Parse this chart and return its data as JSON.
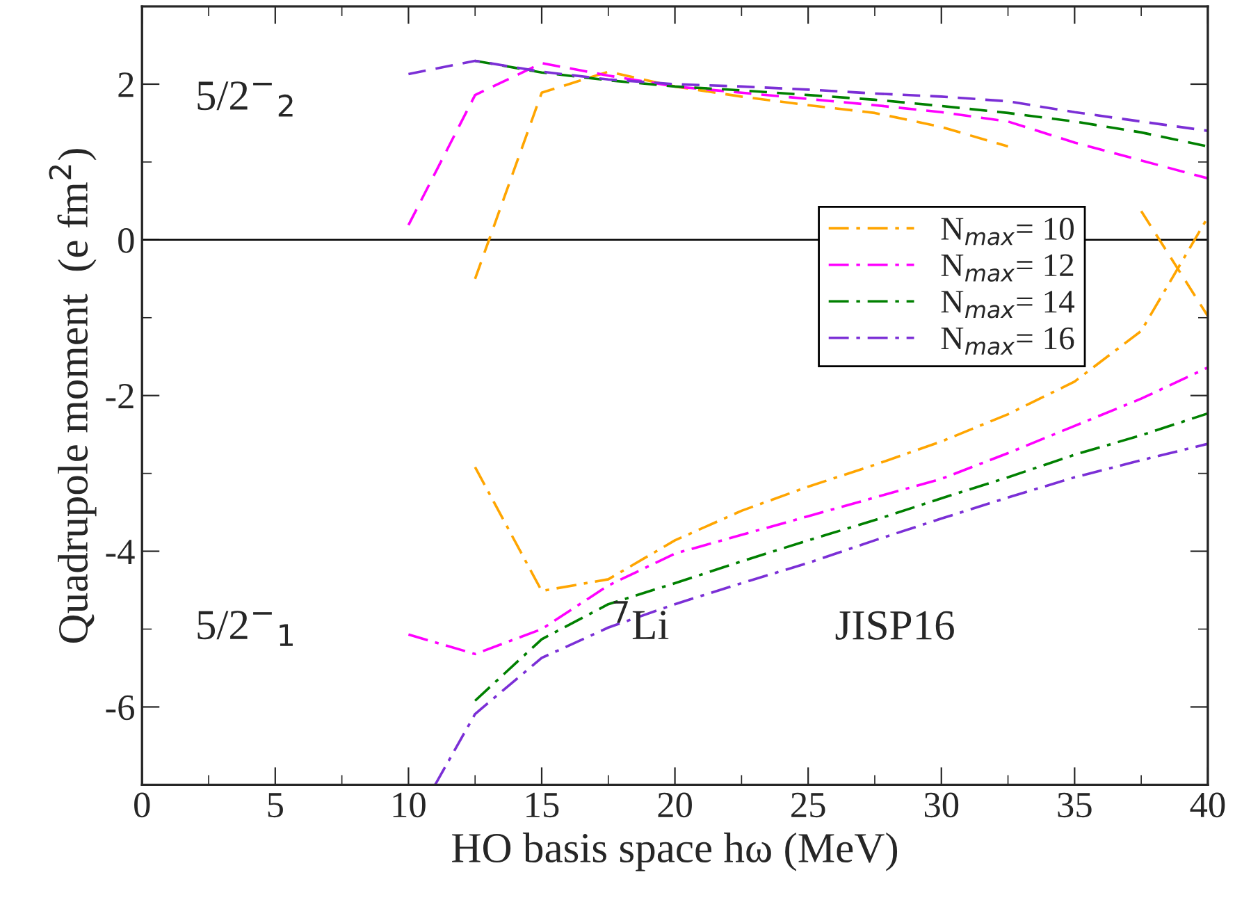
{
  "chart_data": {
    "type": "line",
    "xlabel": "HO basis space hω (MeV)",
    "ylabel": "Quadrupole moment  (e fm$^{2}$)",
    "xlim": [
      0,
      40
    ],
    "xticks": [
      0,
      5,
      10,
      15,
      20,
      25,
      30,
      35,
      40
    ],
    "ylim": [
      -7,
      3
    ],
    "yticks": [
      -6,
      -4,
      -2,
      0,
      2
    ],
    "grid": false,
    "legend": "right",
    "marker": "none",
    "ref_lines": [
      {
        "axis": "y",
        "value": 0,
        "color": "#000000",
        "line_style": "solid"
      }
    ],
    "annotations": [
      "5/2$^{−}$$_{2}$",
      "5/2$^{−}$$_{1}$",
      "$^{7}$Li",
      "JISP16"
    ],
    "series": [
      {
        "name": "N$_{max}$= 10",
        "color": "#ffa500",
        "line_style": "dashdot",
        "x": [
          12.5,
          15,
          17.5,
          20,
          22.5,
          25,
          27.5,
          30,
          32.5,
          35,
          37.5,
          40
        ],
        "values": [
          -2.92,
          -4.51,
          -4.36,
          -3.86,
          -3.48,
          -3.17,
          -2.89,
          -2.59,
          -2.24,
          -1.82,
          -1.17,
          0.29
        ]
      },
      {
        "name": "N$_{max}$= 12",
        "color": "#ff00ff",
        "line_style": "dashdot",
        "x": [
          10,
          12.5,
          15,
          17.5,
          20,
          22.5,
          25,
          27.5,
          30,
          32.5,
          35,
          37.5,
          40
        ],
        "values": [
          -5.07,
          -5.32,
          -5.0,
          -4.44,
          -4.03,
          -3.79,
          -3.55,
          -3.31,
          -3.07,
          -2.74,
          -2.39,
          -2.04,
          -1.64
        ]
      },
      {
        "name": "N$_{max}$= 14",
        "color": "#008000",
        "line_style": "dashdot",
        "x": [
          12.5,
          15,
          17.5,
          20,
          22.5,
          25,
          27.5,
          30,
          32.5,
          35,
          37.5,
          40
        ],
        "values": [
          -5.92,
          -5.13,
          -4.68,
          -4.41,
          -4.13,
          -3.86,
          -3.6,
          -3.32,
          -3.05,
          -2.76,
          -2.51,
          -2.23
        ]
      },
      {
        "name": "N$_{max}$= 16",
        "color": "#7b2fd6",
        "line_style": "dashdot",
        "x": [
          11,
          12.5,
          15,
          17.5,
          20,
          22.5,
          25,
          27.5,
          30,
          32.5,
          35,
          37.5,
          40
        ],
        "values": [
          -7.0,
          -6.09,
          -5.37,
          -4.98,
          -4.68,
          -4.41,
          -4.15,
          -3.86,
          -3.58,
          -3.31,
          -3.05,
          -2.83,
          -2.62
        ]
      },
      {
        "color": "#ffa500",
        "line_style": "dashed",
        "x": [
          12.5,
          15,
          17.5,
          20,
          22.5,
          25,
          27.5,
          30,
          32.5,
          35,
          37.5,
          40
        ],
        "values": [
          -0.5,
          1.89,
          2.16,
          1.97,
          1.84,
          1.73,
          1.63,
          1.45,
          1.2,
          null,
          0.37,
          -0.98
        ]
      },
      {
        "color": "#ff00ff",
        "line_style": "dashed",
        "x": [
          10,
          12.5,
          15,
          17.5,
          20,
          22.5,
          25,
          27.5,
          30,
          32.5,
          35,
          37.5,
          40
        ],
        "values": [
          0.19,
          1.86,
          2.27,
          2.11,
          1.97,
          1.89,
          1.81,
          1.73,
          1.64,
          1.52,
          1.25,
          1.02,
          0.79
        ]
      },
      {
        "color": "#008000",
        "line_style": "dashed",
        "x": [
          12.5,
          15,
          17.5,
          20,
          22.5,
          25,
          27.5,
          30,
          32.5,
          35,
          37.5,
          40
        ],
        "values": [
          2.3,
          2.15,
          2.05,
          1.97,
          1.92,
          1.86,
          1.8,
          1.72,
          1.63,
          1.52,
          1.38,
          1.2
        ]
      },
      {
        "color": "#7b2fd6",
        "line_style": "dashed",
        "x": [
          10,
          12.5,
          15,
          17.5,
          20,
          22.5,
          25,
          27.5,
          30,
          32.5,
          35,
          37.5,
          40
        ],
        "values": [
          2.13,
          2.3,
          2.16,
          2.06,
          2.0,
          1.97,
          1.93,
          1.88,
          1.84,
          1.78,
          1.64,
          1.52,
          1.4
        ]
      }
    ]
  }
}
